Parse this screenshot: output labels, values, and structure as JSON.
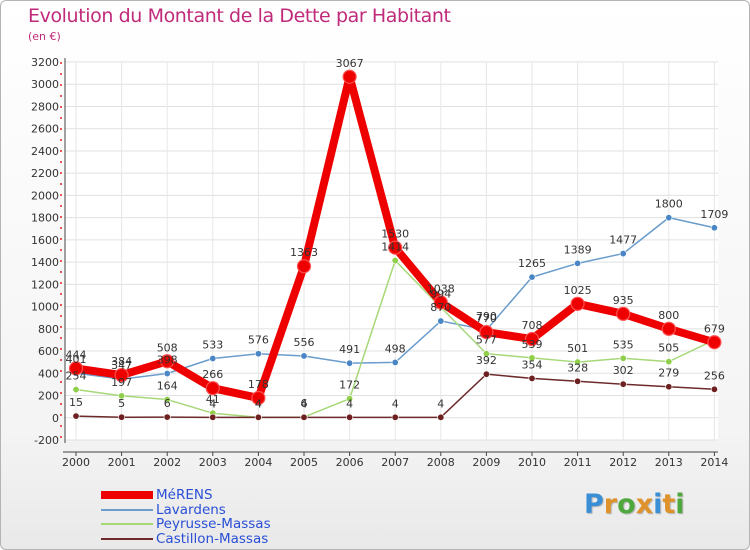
{
  "title": "Evolution du Montant de la Dette par Habitant",
  "subtitle": "(en €)",
  "brand": {
    "letters": [
      "P",
      "r",
      "o",
      "x",
      "i",
      "t",
      "i"
    ],
    "colors": [
      "#3a8ed6",
      "#e0922a",
      "#4fa83d",
      "#e0922a",
      "#3a8ed6",
      "#e0922a",
      "#4fa83d"
    ]
  },
  "chart_data": {
    "type": "line",
    "x": [
      "2000",
      "2001",
      "2002",
      "2003",
      "2004",
      "2005",
      "2006",
      "2007",
      "2008",
      "2009",
      "2010",
      "2011",
      "2012",
      "2013",
      "2014"
    ],
    "ylim": [
      -200,
      3200
    ],
    "yticks": [
      "-200",
      "0",
      "200",
      "400",
      "600",
      "800",
      "1000",
      "1200",
      "1400",
      "1600",
      "1800",
      "2000",
      "2200",
      "2400",
      "2600",
      "2800",
      "3000",
      "3200"
    ],
    "grid": true,
    "legend_position": "bottom-left",
    "series": [
      {
        "name": "Lavardens",
        "color": "#6a9ccc",
        "marker": "#4a86c6",
        "values": [
          401,
          347,
          398,
          533,
          576,
          556,
          491,
          498,
          870,
          790,
          1265,
          1389,
          1477,
          1800,
          1709
        ],
        "labels": [
          "401",
          "347",
          "398",
          "533",
          "576",
          "556",
          "491",
          "498",
          "870",
          "790",
          "1265",
          "1389",
          "1477",
          "1800",
          "1709"
        ]
      },
      {
        "name": "Peyrusse-Massas",
        "color": "#a6d878",
        "marker": "#8fcf4a",
        "values": [
          254,
          197,
          164,
          41,
          4,
          6,
          172,
          1414,
          994,
          577,
          539,
          501,
          535,
          505,
          700
        ],
        "labels": [
          "254",
          "197",
          "164",
          "41",
          "4",
          "6",
          "172",
          "1414",
          "994",
          "577",
          "539",
          "501",
          "535",
          "505",
          ""
        ]
      },
      {
        "name": "Castillon-Massas",
        "color": "#6e2a2a",
        "marker": "#6e1f1f",
        "values": [
          15,
          5,
          6,
          4,
          4,
          4,
          4,
          4,
          4,
          392,
          354,
          328,
          302,
          279,
          256
        ],
        "labels": [
          "15",
          "5",
          "6",
          "4",
          "4",
          "4",
          "4",
          "4",
          "4",
          "392",
          "354",
          "328",
          "302",
          "279",
          "256"
        ]
      },
      {
        "name": "MéRENS",
        "color": "#ee0000",
        "marker": "#ee0000",
        "values": [
          444,
          384,
          508,
          266,
          178,
          1363,
          3067,
          1530,
          1038,
          770,
          708,
          1025,
          935,
          800,
          679
        ],
        "labels": [
          "444",
          "384",
          "508",
          "266",
          "178",
          "1363",
          "3067",
          "1530",
          "1038",
          "770",
          "708",
          "1025",
          "935",
          "800",
          "679"
        ]
      }
    ],
    "legend": [
      "MéRENS",
      "Lavardens",
      "Peyrusse-Massas",
      "Castillon-Massas"
    ]
  }
}
